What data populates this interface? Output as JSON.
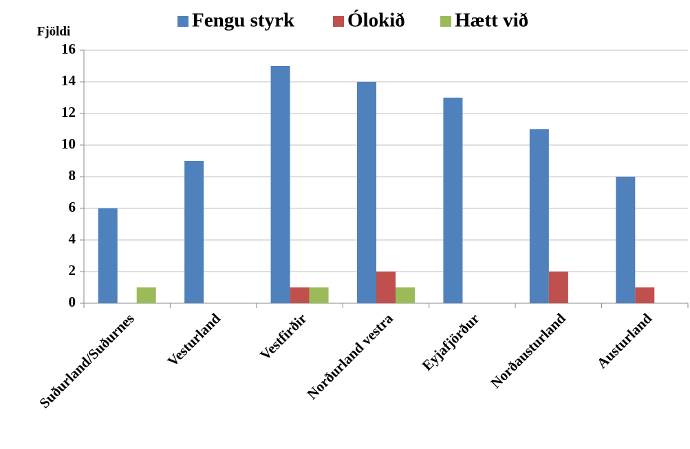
{
  "chart_data": {
    "type": "bar",
    "y_label": "Fjöldi",
    "categories": [
      "Suðurland/Suðurnes",
      "Vesturland",
      "Vestfirðir",
      "Norðurland vestra",
      "Eyjafjörður",
      "Norðausturland",
      "Austurland"
    ],
    "series": [
      {
        "name": "Fengu styrk",
        "color": "#4f81bd",
        "values": [
          6,
          9,
          15,
          14,
          13,
          11,
          8
        ]
      },
      {
        "name": "Ólokið",
        "color": "#c0504d",
        "values": [
          0,
          0,
          1,
          2,
          0,
          2,
          1
        ]
      },
      {
        "name": "Hætt við",
        "color": "#9bbb59",
        "values": [
          1,
          0,
          1,
          1,
          0,
          0,
          0
        ]
      }
    ],
    "ylim": [
      0,
      16
    ],
    "yticks": [
      0,
      2,
      4,
      6,
      8,
      10,
      12,
      14,
      16
    ],
    "grid": true,
    "legend": "top"
  }
}
